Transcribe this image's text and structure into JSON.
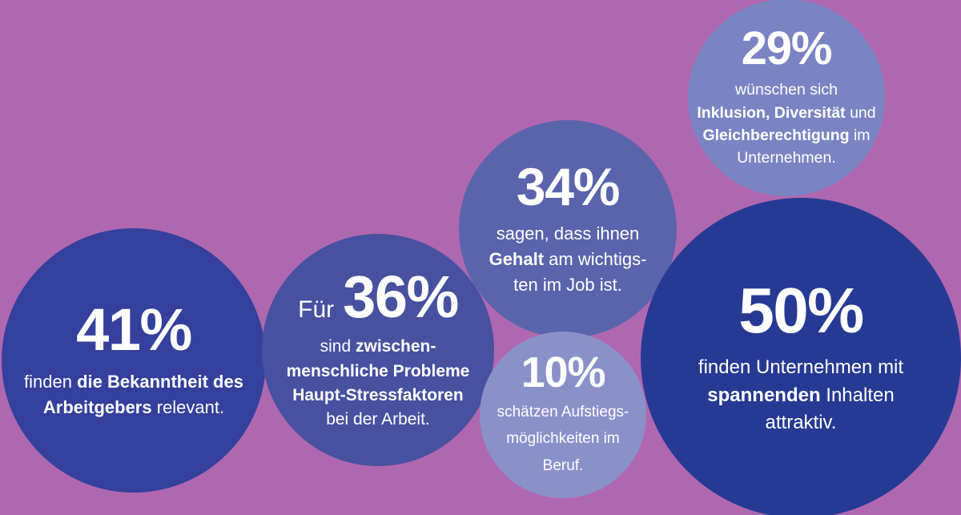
{
  "canvas": {
    "background": "#AF68B0"
  },
  "chart_data": {
    "type": "bubble",
    "title": "",
    "values": [
      41,
      36,
      34,
      29,
      10,
      50
    ],
    "labels": [
      "finden die Bekanntheit des Arbeitgebers relevant.",
      "Für 36% sind zwischenmenschliche Probleme Haupt-Stressfaktoren bei der Arbeit.",
      "sagen, dass ihnen Gehalt am wichtigsten im Job ist.",
      "wünschen sich Inklusion, Diversität und Gleichberechtigung im Unternehmen.",
      "schätzen Aufstiegsmöglichkeiten im Beruf.",
      "finden Unternehmen mit spannenden Inhalten attraktiv."
    ],
    "legend": "none",
    "grid": false
  },
  "bubbles": [
    {
      "id": "employer-awareness",
      "value": 41,
      "stat": "41%",
      "color": "#34409C",
      "lines": [
        [
          {
            "t": "finden "
          },
          {
            "t": "die Bekanntheit des",
            "b": true
          }
        ],
        [
          {
            "t": "Arbeitgebers",
            "b": true
          },
          {
            "t": " relevant."
          }
        ]
      ]
    },
    {
      "id": "interpersonal-stress",
      "value": 36,
      "stat": "36%",
      "stat_prefix": "Für",
      "color": "#47519F",
      "lines": [
        [
          {
            "t": "sind "
          },
          {
            "t": "zwischen-",
            "b": true
          }
        ],
        [
          {
            "t": "menschliche Probleme",
            "b": true
          }
        ],
        [
          {
            "t": "Haupt-Stressfaktoren",
            "b": true
          }
        ],
        [
          {
            "t": "bei der Arbeit."
          }
        ]
      ]
    },
    {
      "id": "salary-importance",
      "value": 34,
      "stat": "34%",
      "color": "#5A64AC",
      "lines": [
        [
          {
            "t": "sagen, dass ihnen"
          }
        ],
        [
          {
            "t": "Gehalt",
            "b": true
          },
          {
            "t": " am wichtigs-"
          }
        ],
        [
          {
            "t": "ten im Job ist."
          }
        ]
      ]
    },
    {
      "id": "inclusion-diversity",
      "value": 29,
      "stat": "29%",
      "color": "#7B84C3",
      "lines": [
        [
          {
            "t": "wünschen sich"
          }
        ],
        [
          {
            "t": "Inklusion, Diversität",
            "b": true
          },
          {
            "t": " und"
          }
        ],
        [
          {
            "t": "Gleichberechtigung",
            "b": true
          },
          {
            "t": " im"
          }
        ],
        [
          {
            "t": "Unternehmen."
          }
        ]
      ]
    },
    {
      "id": "engaging-content",
      "value": 50,
      "stat": "50%",
      "color": "#263A94",
      "lines": [
        [
          {
            "t": "finden Unternehmen mit"
          }
        ],
        [
          {
            "t": "spannenden",
            "b": true
          },
          {
            "t": " Inhalten"
          }
        ],
        [
          {
            "t": "attraktiv."
          }
        ]
      ]
    },
    {
      "id": "career-advancement",
      "value": 10,
      "stat": "10%",
      "color": "#8A91C9",
      "lines": [
        [
          {
            "t": "schätzen Aufstiegs-"
          }
        ],
        [
          {
            "t": "möglichkeiten im"
          }
        ],
        [
          {
            "t": "Beruf."
          }
        ]
      ]
    }
  ]
}
